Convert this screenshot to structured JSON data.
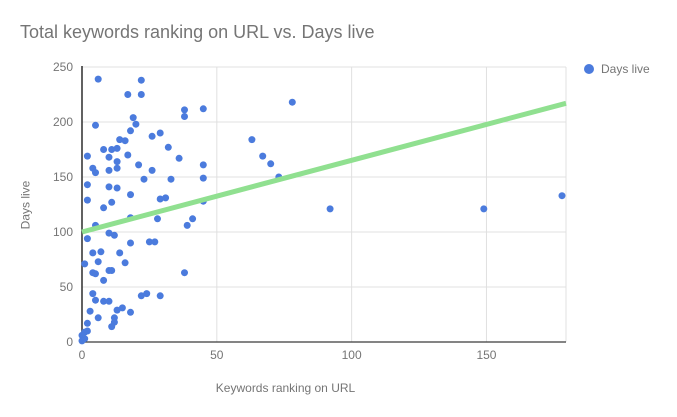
{
  "chart_data": {
    "type": "scatter",
    "title": "Total keywords ranking on URL vs. Days live",
    "xlabel": "Keywords ranking on URL",
    "ylabel": "Days live",
    "legend_position": "right",
    "grid": true,
    "legend": [
      {
        "label": "Days live",
        "color": "#4b7bdd"
      }
    ],
    "x_axis": {
      "min": 0,
      "max": 179.5,
      "ticks": [
        0,
        50,
        100,
        150
      ]
    },
    "y_axis": {
      "min": 0,
      "max": 250,
      "ticks": [
        0,
        50,
        100,
        150,
        200,
        250
      ]
    },
    "colors": {
      "grid": "#e0e0e0",
      "axis": "#3a3a3a",
      "tick_label": "#757575",
      "title": "#757575"
    },
    "trendline": {
      "x1": 0,
      "y1": 100,
      "x2": 179.5,
      "y2": 217,
      "color": "#90e090"
    },
    "series": [
      {
        "name": "Days live",
        "color": "#4b7bdd",
        "points": [
          [
            6,
            239
          ],
          [
            22,
            238
          ],
          [
            17,
            225
          ],
          [
            22,
            225
          ],
          [
            38,
            211
          ],
          [
            38,
            205
          ],
          [
            45,
            212
          ],
          [
            19,
            204
          ],
          [
            20,
            198
          ],
          [
            5,
            197
          ],
          [
            18,
            192
          ],
          [
            29,
            190
          ],
          [
            26,
            187
          ],
          [
            14,
            184
          ],
          [
            16,
            183
          ],
          [
            8,
            175
          ],
          [
            11,
            175
          ],
          [
            13,
            176
          ],
          [
            32,
            177
          ],
          [
            17,
            170
          ],
          [
            2,
            169
          ],
          [
            10,
            168
          ],
          [
            13,
            164
          ],
          [
            4,
            158
          ],
          [
            5,
            154
          ],
          [
            10,
            156
          ],
          [
            13,
            158
          ],
          [
            21,
            161
          ],
          [
            26,
            156
          ],
          [
            36,
            167
          ],
          [
            45,
            161
          ],
          [
            23,
            148
          ],
          [
            33,
            148
          ],
          [
            45,
            149
          ],
          [
            2,
            143
          ],
          [
            10,
            141
          ],
          [
            13,
            140
          ],
          [
            18,
            134
          ],
          [
            2,
            129
          ],
          [
            11,
            127
          ],
          [
            8,
            122
          ],
          [
            29,
            130
          ],
          [
            31,
            131
          ],
          [
            45,
            128
          ],
          [
            18,
            113
          ],
          [
            28,
            112
          ],
          [
            41,
            112
          ],
          [
            39,
            106
          ],
          [
            5,
            106
          ],
          [
            2,
            94
          ],
          [
            10,
            99
          ],
          [
            12,
            97
          ],
          [
            18,
            90
          ],
          [
            25,
            91
          ],
          [
            27,
            91
          ],
          [
            7,
            82
          ],
          [
            14,
            81
          ],
          [
            4,
            81
          ],
          [
            1,
            71
          ],
          [
            6,
            73
          ],
          [
            16,
            72
          ],
          [
            4,
            63
          ],
          [
            5,
            62
          ],
          [
            10,
            65
          ],
          [
            11,
            65
          ],
          [
            38,
            63
          ],
          [
            8,
            56
          ],
          [
            63,
            184
          ],
          [
            67,
            169
          ],
          [
            70,
            162
          ],
          [
            73,
            150
          ],
          [
            78,
            218
          ],
          [
            92,
            121
          ],
          [
            149,
            121
          ],
          [
            178,
            133
          ],
          [
            4,
            44
          ],
          [
            5,
            38
          ],
          [
            8,
            37
          ],
          [
            10,
            37
          ],
          [
            22,
            42
          ],
          [
            24,
            44
          ],
          [
            29,
            42
          ],
          [
            3,
            28
          ],
          [
            13,
            29
          ],
          [
            15,
            31
          ],
          [
            18,
            27
          ],
          [
            6,
            22
          ],
          [
            12,
            22
          ],
          [
            2,
            17
          ],
          [
            12,
            18
          ],
          [
            11,
            14
          ],
          [
            1,
            9
          ],
          [
            2,
            10
          ],
          [
            0,
            6
          ],
          [
            1,
            3
          ],
          [
            0,
            1
          ]
        ]
      }
    ]
  }
}
